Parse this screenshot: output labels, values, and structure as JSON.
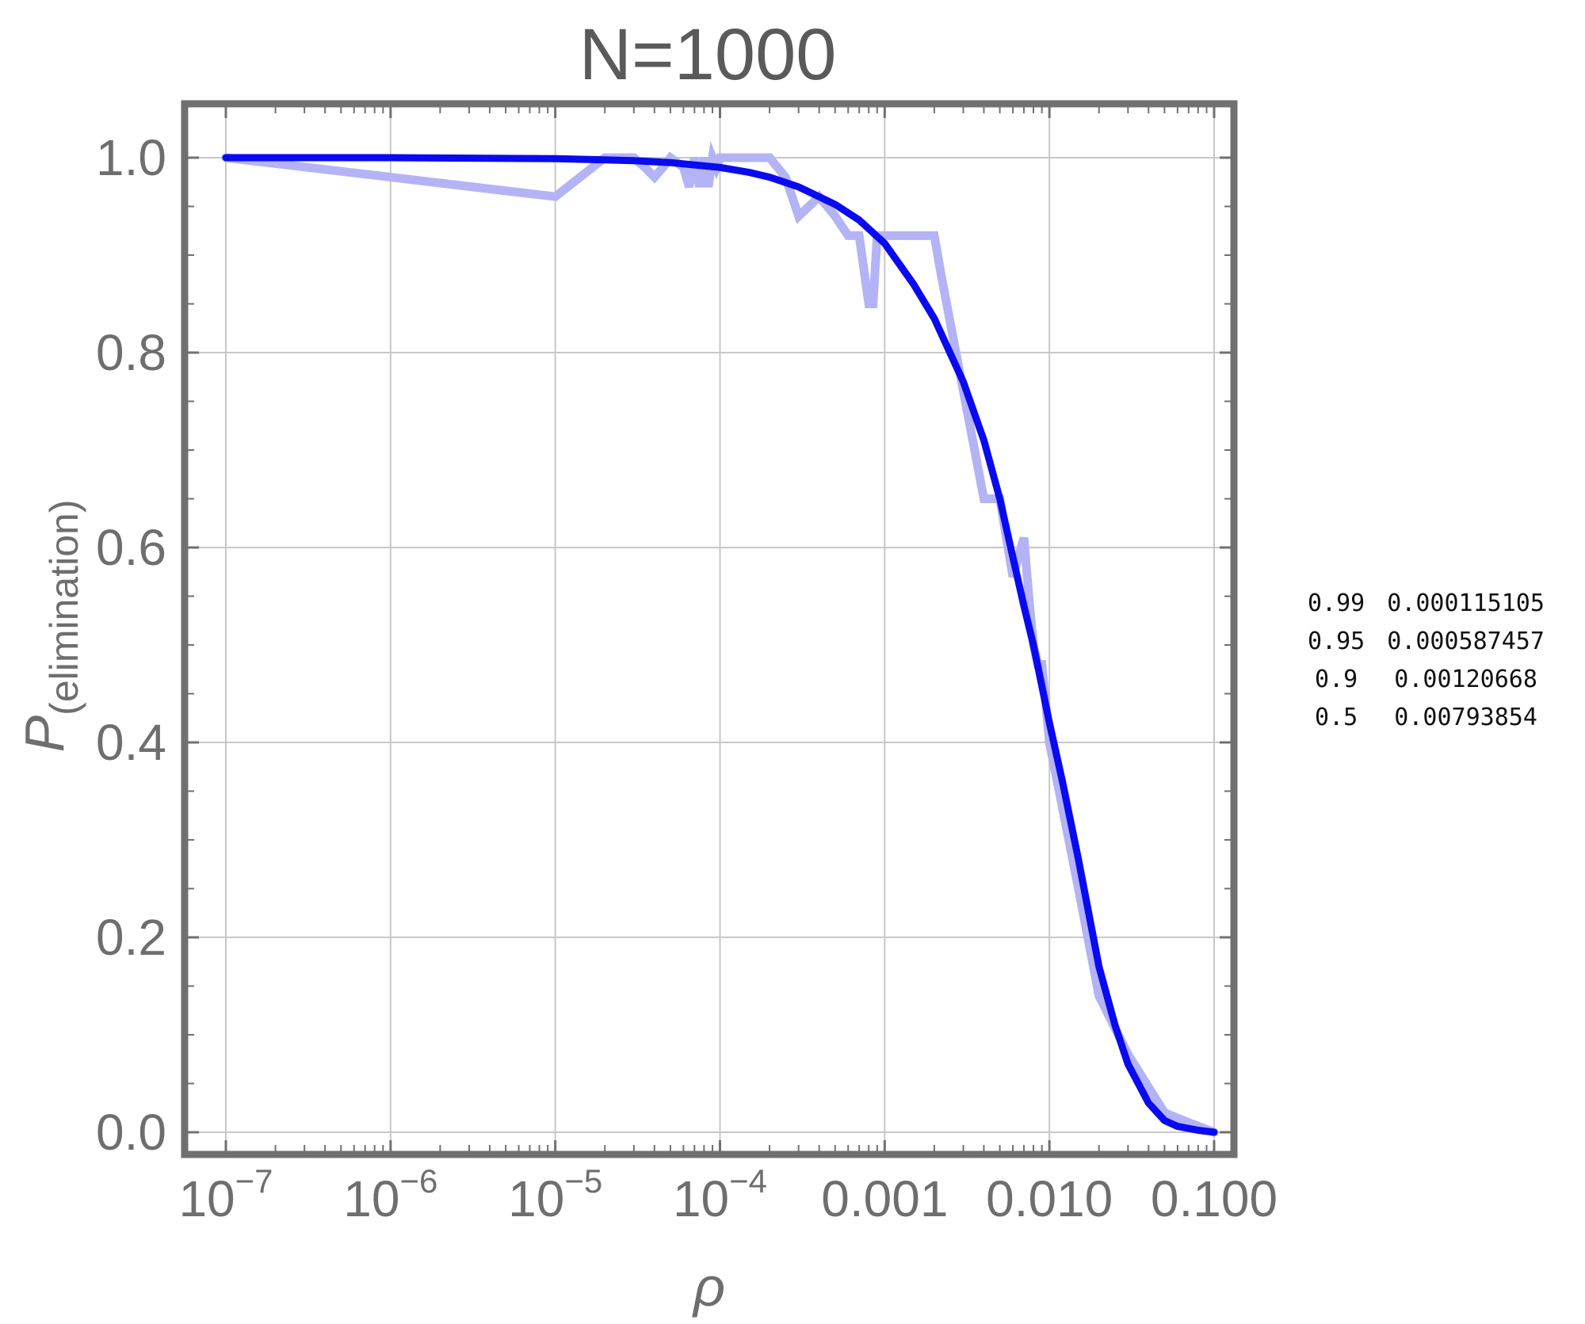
{
  "chart_data": {
    "type": "line",
    "title": "N=1000",
    "xlabel": "ρ",
    "ylabel": {
      "main": "P",
      "sub": "(elimination)"
    },
    "xscale": "log",
    "xlim": [
      1e-07,
      0.1
    ],
    "ylim": [
      0.0,
      1.0
    ],
    "grid": true,
    "x_ticks": [
      {
        "value": 1e-07,
        "base": "10",
        "exp": "−7"
      },
      {
        "value": 1e-06,
        "base": "10",
        "exp": "−6"
      },
      {
        "value": 1e-05,
        "base": "10",
        "exp": "−5"
      },
      {
        "value": 0.0001,
        "base": "10",
        "exp": "−4"
      },
      {
        "value": 0.001,
        "label": "0.001"
      },
      {
        "value": 0.01,
        "label": "0.010"
      },
      {
        "value": 0.1,
        "label": "0.100"
      }
    ],
    "y_ticks": [
      {
        "value": 0.0,
        "label": "0.0"
      },
      {
        "value": 0.2,
        "label": "0.2"
      },
      {
        "value": 0.4,
        "label": "0.4"
      },
      {
        "value": 0.6,
        "label": "0.6"
      },
      {
        "value": 0.8,
        "label": "0.8"
      },
      {
        "value": 1.0,
        "label": "1.0"
      }
    ],
    "series": [
      {
        "style": "simulation",
        "color": "#b3b3f6",
        "x": [
          1e-07,
          1e-05,
          2e-05,
          3e-05,
          3.5e-05,
          4e-05,
          4.5e-05,
          5e-05,
          6e-05,
          6.5e-05,
          7e-05,
          7.5e-05,
          8e-05,
          8.5e-05,
          9e-05,
          9.5e-05,
          0.0001,
          0.00012,
          0.0002,
          0.00025,
          0.0003,
          0.0004,
          0.0005,
          0.0006,
          0.0007,
          0.0008,
          0.00085,
          0.0009,
          0.00095,
          0.001,
          0.002,
          0.0022,
          0.004,
          0.005,
          0.006,
          0.007,
          0.0075,
          0.008,
          0.0085,
          0.009,
          0.01,
          0.015,
          0.02,
          0.03,
          0.05,
          0.07,
          0.1
        ],
        "y": [
          1.0,
          0.96,
          1.0,
          1.0,
          0.99,
          0.98,
          0.99,
          1.0,
          0.99,
          0.97,
          1.0,
          0.97,
          1.0,
          0.97,
          1.0,
          0.99,
          1.0,
          1.0,
          1.0,
          0.98,
          0.94,
          0.96,
          0.94,
          0.92,
          0.92,
          0.85,
          0.85,
          0.92,
          0.92,
          0.92,
          0.92,
          0.88,
          0.65,
          0.65,
          0.57,
          0.61,
          0.55,
          0.5,
          0.48,
          0.48,
          0.4,
          0.25,
          0.14,
          0.08,
          0.02,
          0.01,
          0.0
        ]
      },
      {
        "style": "fit",
        "color": "#0a0af0",
        "x": [
          1e-07,
          1e-06,
          1e-05,
          3e-05,
          5e-05,
          0.0001,
          0.00015,
          0.0002,
          0.0003,
          0.0005,
          0.0007,
          0.001,
          0.0015,
          0.002,
          0.003,
          0.004,
          0.005,
          0.006,
          0.007,
          0.008,
          0.01,
          0.012,
          0.015,
          0.02,
          0.025,
          0.03,
          0.04,
          0.05,
          0.06,
          0.08,
          0.1
        ],
        "y": [
          1.0,
          1.0,
          0.999,
          0.997,
          0.995,
          0.99,
          0.985,
          0.98,
          0.97,
          0.952,
          0.936,
          0.912,
          0.87,
          0.835,
          0.77,
          0.71,
          0.65,
          0.59,
          0.54,
          0.5,
          0.42,
          0.36,
          0.28,
          0.17,
          0.11,
          0.07,
          0.03,
          0.012,
          0.006,
          0.002,
          0.0
        ]
      }
    ]
  },
  "side_table": {
    "rows": [
      [
        "0.99",
        "0.000115105"
      ],
      [
        "0.95",
        "0.000587457"
      ],
      [
        "0.9",
        "0.00120668"
      ],
      [
        "0.5",
        "0.00793854"
      ]
    ]
  }
}
